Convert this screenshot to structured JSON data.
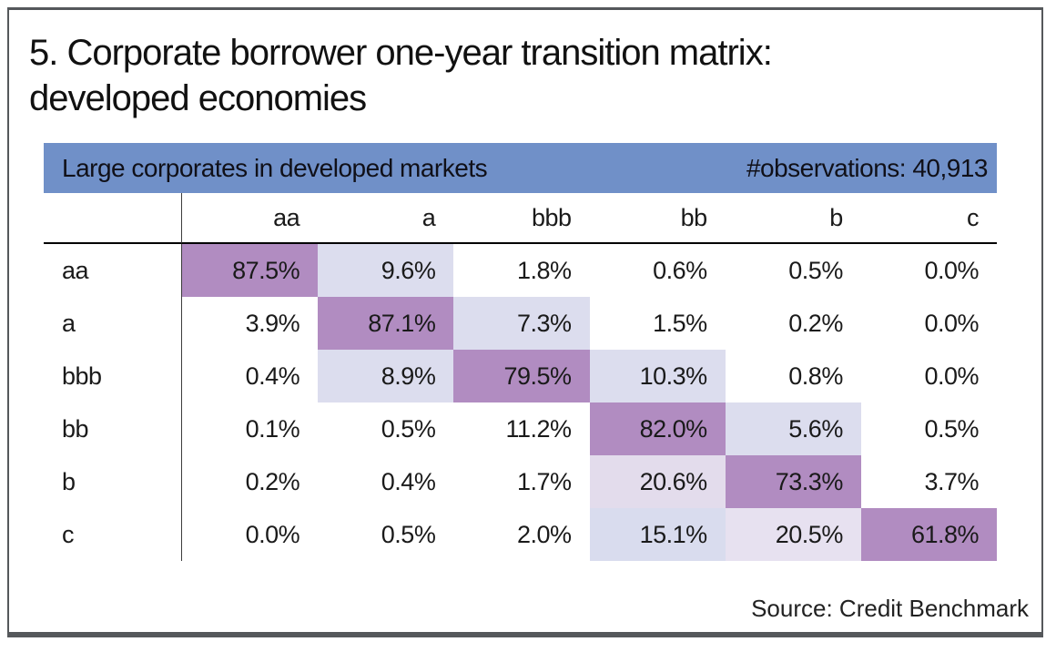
{
  "figure": {
    "title_line1": "5. Corporate borrower one-year transition matrix:",
    "title_line2": "developed economies",
    "source": "Source: Credit Benchmark"
  },
  "banner": {
    "left": "Large corporates in developed markets",
    "right": "#observations: 40,913",
    "bg_color": "#7090c8"
  },
  "matrix": {
    "column_headers": [
      "aa",
      "a",
      "bbb",
      "bb",
      "b",
      "c"
    ],
    "rows": [
      {
        "label": "aa",
        "cells": [
          {
            "value": "87.5%",
            "bg": "#b18cc1"
          },
          {
            "value": "9.6%",
            "bg": "#dcddee"
          },
          {
            "value": "1.8%",
            "bg": ""
          },
          {
            "value": "0.6%",
            "bg": ""
          },
          {
            "value": "0.5%",
            "bg": ""
          },
          {
            "value": "0.0%",
            "bg": ""
          }
        ]
      },
      {
        "label": "a",
        "cells": [
          {
            "value": "3.9%",
            "bg": ""
          },
          {
            "value": "87.1%",
            "bg": "#b18cc1"
          },
          {
            "value": "7.3%",
            "bg": "#dcddee"
          },
          {
            "value": "1.5%",
            "bg": ""
          },
          {
            "value": "0.2%",
            "bg": ""
          },
          {
            "value": "0.0%",
            "bg": ""
          }
        ]
      },
      {
        "label": "bbb",
        "cells": [
          {
            "value": "0.4%",
            "bg": ""
          },
          {
            "value": "8.9%",
            "bg": "#dcddee"
          },
          {
            "value": "79.5%",
            "bg": "#b18cc1"
          },
          {
            "value": "10.3%",
            "bg": "#dcddee"
          },
          {
            "value": "0.8%",
            "bg": ""
          },
          {
            "value": "0.0%",
            "bg": ""
          }
        ]
      },
      {
        "label": "bb",
        "cells": [
          {
            "value": "0.1%",
            "bg": ""
          },
          {
            "value": "0.5%",
            "bg": ""
          },
          {
            "value": "11.2%",
            "bg": ""
          },
          {
            "value": "82.0%",
            "bg": "#b18cc1"
          },
          {
            "value": "5.6%",
            "bg": "#dcddee"
          },
          {
            "value": "0.5%",
            "bg": ""
          }
        ]
      },
      {
        "label": "b",
        "cells": [
          {
            "value": "0.2%",
            "bg": ""
          },
          {
            "value": "0.4%",
            "bg": ""
          },
          {
            "value": "1.7%",
            "bg": ""
          },
          {
            "value": "20.6%",
            "bg": "#e3dcec"
          },
          {
            "value": "73.3%",
            "bg": "#b18cc1"
          },
          {
            "value": "3.7%",
            "bg": ""
          }
        ]
      },
      {
        "label": "c",
        "cells": [
          {
            "value": "0.0%",
            "bg": ""
          },
          {
            "value": "0.5%",
            "bg": ""
          },
          {
            "value": "2.0%",
            "bg": ""
          },
          {
            "value": "15.1%",
            "bg": "#d9dcee"
          },
          {
            "value": "20.5%",
            "bg": "#e7e1f0"
          },
          {
            "value": "61.8%",
            "bg": "#b18cc1"
          }
        ]
      }
    ],
    "heat_colors": {
      "diagonal_high": "#b18cc1",
      "adjacent_mid": "#dcddee",
      "adjacent_pink": "#e3dcec"
    }
  },
  "chart_data": {
    "type": "heatmap",
    "title": "5. Corporate borrower one-year transition matrix: developed economies",
    "subtitle": "Large corporates in developed markets",
    "observations": 40913,
    "row_labels": [
      "aa",
      "a",
      "bbb",
      "bb",
      "b",
      "c"
    ],
    "column_labels": [
      "aa",
      "a",
      "bbb",
      "bb",
      "b",
      "c"
    ],
    "values_percent": [
      [
        87.5,
        9.6,
        1.8,
        0.6,
        0.5,
        0.0
      ],
      [
        3.9,
        87.1,
        7.3,
        1.5,
        0.2,
        0.0
      ],
      [
        0.4,
        8.9,
        79.5,
        10.3,
        0.8,
        0.0
      ],
      [
        0.1,
        0.5,
        11.2,
        82.0,
        5.6,
        0.5
      ],
      [
        0.2,
        0.4,
        1.7,
        20.6,
        73.3,
        3.7
      ],
      [
        0.0,
        0.5,
        2.0,
        15.1,
        20.5,
        61.8
      ]
    ],
    "legend_position": "none",
    "grid": false,
    "source": "Source: Credit Benchmark"
  }
}
